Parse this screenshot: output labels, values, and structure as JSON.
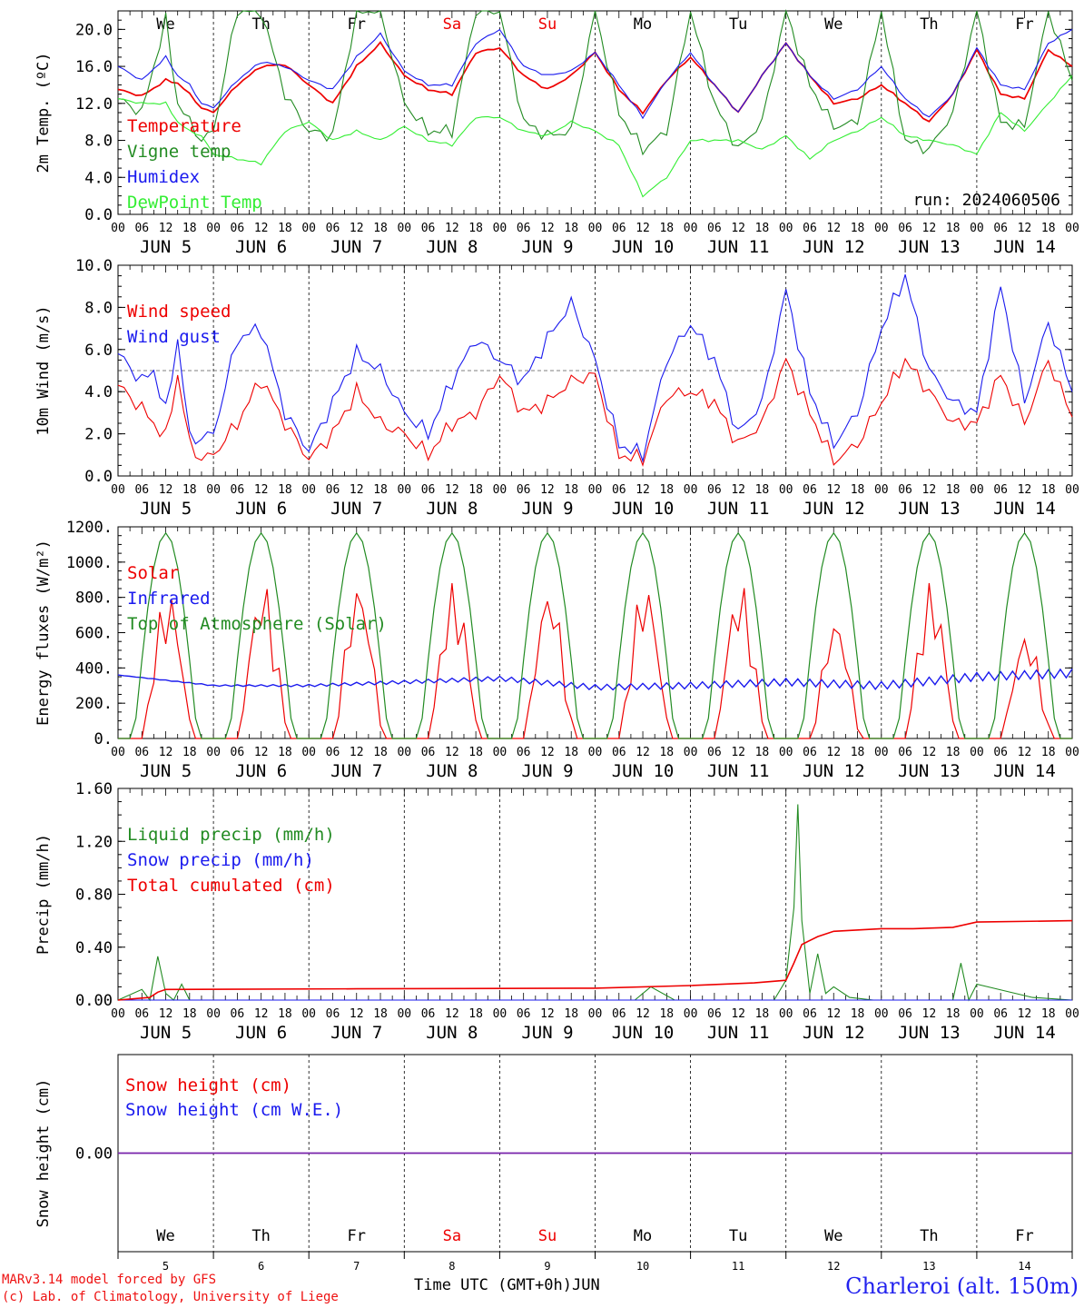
{
  "run_label": "run: 2024060506",
  "footer": {
    "model": "MARv3.14 model forced by GFS",
    "copyright": "(c) Lab. of Climatology, University of Liege",
    "time_label": "Time UTC (GMT+0h)",
    "month_label": "JUN",
    "station": "Charleroi (alt. 150m)"
  },
  "days": {
    "weekday_labels": [
      "We",
      "Th",
      "Fr",
      "Sa",
      "Su",
      "Mo",
      "Tu",
      "We",
      "Th",
      "Fr"
    ],
    "weekend_flags": [
      false,
      false,
      false,
      true,
      true,
      false,
      false,
      false,
      false,
      false
    ],
    "dates": [
      "JUN  5",
      "JUN  6",
      "JUN  7",
      "JUN  8",
      "JUN  9",
      "JUN 10",
      "JUN 11",
      "JUN 12",
      "JUN 13",
      "JUN 14"
    ],
    "day_numbers": [
      "5",
      "6",
      "7",
      "8",
      "9",
      "10",
      "11",
      "12",
      "13",
      "14"
    ],
    "hour_ticks": [
      "00",
      "06",
      "12",
      "18"
    ],
    "final_hour": "00"
  },
  "colors": {
    "red": "#ee0000",
    "green": "#228b22",
    "blue": "#1a1aee",
    "lightgreen": "#33ee33",
    "purple": "#7722aa"
  },
  "chart_data": [
    {
      "type": "line",
      "ylabel": "2m Temp. (ºC)",
      "ylim": [
        0,
        22
      ],
      "yticks": [
        "0.0",
        "4.0",
        "8.0",
        "12.0",
        "16.0",
        "20.0"
      ],
      "ytick_values": [
        0,
        4,
        8,
        12,
        16,
        20
      ],
      "x_unit": "hours since JUN 5 00 UTC",
      "legend_placement": "left",
      "series": [
        {
          "name": "Temperature",
          "color": "red",
          "x": [
            0,
            6,
            12,
            15,
            18,
            21,
            24,
            30,
            36,
            42,
            48,
            54,
            60,
            66,
            72,
            78,
            84,
            90,
            96,
            102,
            108,
            114,
            120,
            126,
            132,
            138,
            144,
            150,
            156,
            162,
            168,
            174,
            180,
            186,
            192,
            198,
            204,
            210,
            216,
            222,
            228,
            234,
            240
          ],
          "values": [
            13.5,
            12.8,
            14.5,
            14.2,
            13.0,
            11.5,
            11.0,
            14.0,
            16.0,
            16.2,
            14.0,
            12.0,
            16.0,
            18.5,
            15.0,
            13.5,
            13.0,
            17.5,
            18.0,
            15.0,
            13.5,
            15.0,
            17.5,
            13.5,
            11.0,
            14.5,
            17.0,
            14.0,
            11.0,
            15.0,
            18.5,
            15.0,
            12.0,
            12.5,
            14.0,
            12.0,
            10.0,
            13.0,
            17.8,
            13.0,
            12.5,
            17.8,
            16.0
          ]
        },
        {
          "name": "Vigne temp",
          "color": "green",
          "x": [
            0,
            6,
            12,
            15,
            18,
            21,
            24,
            30,
            36,
            42,
            48,
            54,
            60,
            66,
            72,
            78,
            84,
            90,
            96,
            102,
            108,
            114,
            120,
            126,
            132,
            138,
            144,
            150,
            156,
            162,
            168,
            174,
            180,
            186,
            192,
            198,
            204,
            210,
            216,
            222,
            228,
            234,
            240
          ],
          "values": [
            12.5,
            11.0,
            21.0,
            12.0,
            10.0,
            8.0,
            9.0,
            22.0,
            22.0,
            13.0,
            9.0,
            8.5,
            22.0,
            22.0,
            12.0,
            9.0,
            9.0,
            22.0,
            22.0,
            10.0,
            8.5,
            9.0,
            22.0,
            11.0,
            7.0,
            9.0,
            22.0,
            12.0,
            7.0,
            10.0,
            22.0,
            14.0,
            9.5,
            10.0,
            22.0,
            8.0,
            7.0,
            11.0,
            22.0,
            10.0,
            9.5,
            22.0,
            14.5
          ]
        },
        {
          "name": "Humidex",
          "color": "blue",
          "x": [
            0,
            6,
            12,
            15,
            18,
            21,
            24,
            30,
            36,
            42,
            48,
            54,
            60,
            66,
            72,
            78,
            84,
            90,
            96,
            102,
            108,
            114,
            120,
            126,
            132,
            138,
            144,
            150,
            156,
            162,
            168,
            174,
            180,
            186,
            192,
            198,
            204,
            210,
            216,
            222,
            228,
            234,
            240
          ],
          "values": [
            16.0,
            14.5,
            17.0,
            15.0,
            14.0,
            12.0,
            11.5,
            14.5,
            16.5,
            16.0,
            14.5,
            13.5,
            17.0,
            19.5,
            15.5,
            14.0,
            14.0,
            18.5,
            20.0,
            16.0,
            15.0,
            15.5,
            17.5,
            14.0,
            10.5,
            14.5,
            17.5,
            14.0,
            11.0,
            15.0,
            18.5,
            15.0,
            12.5,
            13.5,
            16.0,
            12.5,
            10.5,
            13.0,
            18.0,
            14.0,
            13.5,
            18.5,
            20.0
          ]
        },
        {
          "name": "DewPoint Temp",
          "color": "lightgreen",
          "x": [
            0,
            6,
            12,
            15,
            18,
            21,
            24,
            30,
            36,
            42,
            48,
            54,
            60,
            66,
            72,
            78,
            84,
            90,
            96,
            102,
            108,
            114,
            120,
            126,
            132,
            138,
            144,
            150,
            156,
            162,
            168,
            174,
            180,
            186,
            192,
            198,
            204,
            210,
            216,
            222,
            228,
            234,
            240
          ],
          "values": [
            12.5,
            12.0,
            12.0,
            10.0,
            9.0,
            8.5,
            6.5,
            6.0,
            5.5,
            9.0,
            10.0,
            8.0,
            9.0,
            8.0,
            9.5,
            8.0,
            7.5,
            10.5,
            10.5,
            9.0,
            8.5,
            10.0,
            9.0,
            7.5,
            2.0,
            4.0,
            8.0,
            8.0,
            8.0,
            7.0,
            8.5,
            6.0,
            8.0,
            9.0,
            10.5,
            8.5,
            8.0,
            7.5,
            6.5,
            11.0,
            9.0,
            12.0,
            15.0
          ]
        }
      ]
    },
    {
      "type": "line",
      "ylabel": "10m Wind (m/s)",
      "ylim": [
        0,
        10
      ],
      "yticks": [
        "0.0",
        "2.0",
        "4.0",
        "6.0",
        "8.0",
        "10.0"
      ],
      "ytick_values": [
        0,
        2,
        4,
        6,
        8,
        10
      ],
      "reference_line": 5,
      "legend_placement": "left",
      "series": [
        {
          "name": "Wind speed",
          "color": "red",
          "x": [
            0,
            6,
            9,
            12,
            15,
            18,
            21,
            24,
            30,
            36,
            42,
            48,
            54,
            60,
            66,
            72,
            78,
            84,
            90,
            96,
            102,
            108,
            114,
            120,
            126,
            132,
            138,
            144,
            150,
            156,
            162,
            168,
            174,
            180,
            186,
            192,
            198,
            204,
            210,
            216,
            222,
            228,
            234,
            240
          ],
          "values": [
            4.3,
            3.2,
            2.5,
            1.8,
            4.8,
            1.5,
            0.8,
            1.0,
            2.5,
            4.6,
            2.5,
            0.8,
            2.0,
            4.0,
            2.5,
            2.0,
            1.0,
            2.5,
            3.0,
            4.8,
            3.0,
            3.5,
            4.5,
            4.8,
            1.0,
            0.8,
            3.8,
            4.0,
            3.5,
            1.5,
            2.5,
            5.5,
            3.0,
            0.7,
            1.5,
            3.5,
            5.5,
            4.0,
            2.5,
            2.5,
            4.8,
            2.5,
            5.5,
            2.8
          ]
        },
        {
          "name": "Wind gust",
          "color": "blue",
          "x": [
            0,
            6,
            9,
            12,
            15,
            18,
            21,
            24,
            30,
            36,
            42,
            48,
            54,
            60,
            66,
            72,
            78,
            84,
            90,
            96,
            102,
            108,
            114,
            120,
            126,
            132,
            138,
            144,
            150,
            156,
            162,
            168,
            174,
            180,
            186,
            192,
            198,
            204,
            210,
            216,
            222,
            228,
            234,
            240
          ],
          "values": [
            5.8,
            4.5,
            5.0,
            3.0,
            6.5,
            1.8,
            1.8,
            2.0,
            6.5,
            7.0,
            3.0,
            1.2,
            3.5,
            5.8,
            5.0,
            3.0,
            2.0,
            4.5,
            6.5,
            5.5,
            4.5,
            6.5,
            8.2,
            5.5,
            1.5,
            1.0,
            5.5,
            7.2,
            5.5,
            2.0,
            3.5,
            8.8,
            4.0,
            1.5,
            3.0,
            7.0,
            9.5,
            5.0,
            3.5,
            3.0,
            9.0,
            3.5,
            7.3,
            4.0
          ]
        }
      ]
    },
    {
      "type": "line",
      "ylabel": "Energy fluxes (W/m²)",
      "ylim": [
        0,
        1200
      ],
      "yticks": [
        "0.",
        "200.",
        "400.",
        "600.",
        "800.",
        "1000.",
        "1200."
      ],
      "ytick_values": [
        0,
        200,
        400,
        600,
        800,
        1000,
        1200
      ],
      "legend_placement": "left",
      "series": [
        {
          "name": "Solar",
          "color": "red",
          "peaks": [
            850,
            890,
            890,
            890,
            870,
            900,
            890,
            690,
            890,
            610
          ]
        },
        {
          "name": "Infrared",
          "color": "blue",
          "x": [
            0,
            24,
            48,
            72,
            96,
            120,
            144,
            168,
            192,
            216,
            240
          ],
          "values": [
            360,
            300,
            300,
            320,
            340,
            290,
            300,
            320,
            300,
            350,
            370
          ]
        },
        {
          "name": "Top of Atmosphere (Solar)",
          "color": "green",
          "peaks": [
            1165,
            1165,
            1165,
            1165,
            1165,
            1165,
            1165,
            1165,
            1165,
            1165
          ]
        }
      ]
    },
    {
      "type": "line",
      "ylabel": "Precip (mm/h)",
      "ylim": [
        0,
        1.6
      ],
      "yticks": [
        "0.00",
        "0.40",
        "0.80",
        "1.20",
        "1.60"
      ],
      "ytick_values": [
        0,
        0.4,
        0.8,
        1.2,
        1.6
      ],
      "legend_placement": "left",
      "series": [
        {
          "name": "Liquid precip (mm/h)",
          "color": "green",
          "x": [
            0,
            6,
            8,
            10,
            12,
            14,
            16,
            18,
            20,
            24,
            120,
            130,
            134,
            140,
            150,
            160,
            165,
            168,
            170,
            171,
            172,
            174,
            176,
            178,
            180,
            184,
            190,
            200,
            205,
            210,
            212,
            214,
            216,
            230,
            240
          ],
          "values": [
            0,
            0.08,
            0,
            0.33,
            0.05,
            0,
            0.12,
            0,
            0,
            0,
            0,
            0,
            0.1,
            0,
            0,
            0,
            0,
            0.15,
            0.7,
            1.48,
            0.6,
            0.05,
            0.35,
            0.05,
            0.1,
            0.02,
            0,
            0,
            0,
            0,
            0.28,
            0,
            0.12,
            0.02,
            0
          ]
        },
        {
          "name": "Snow precip (mm/h)",
          "color": "blue",
          "x": [
            0,
            240
          ],
          "values": [
            0,
            0
          ]
        },
        {
          "name": "Total cumulated (cm)",
          "color": "red",
          "x": [
            0,
            8,
            10,
            12,
            60,
            120,
            144,
            160,
            168,
            170,
            172,
            176,
            180,
            192,
            200,
            210,
            216,
            240
          ],
          "values": [
            0,
            0.02,
            0.06,
            0.08,
            0.085,
            0.09,
            0.11,
            0.13,
            0.15,
            0.28,
            0.42,
            0.48,
            0.52,
            0.54,
            0.54,
            0.55,
            0.59,
            0.6
          ]
        }
      ]
    },
    {
      "type": "line",
      "ylabel": "Snow height (cm)",
      "ylim": [
        -1,
        1
      ],
      "yticks": [
        "0.00"
      ],
      "ytick_values": [
        0
      ],
      "legend_placement": "left",
      "series": [
        {
          "name": "Snow height (cm)",
          "color": "red",
          "x": [
            0,
            240
          ],
          "values": [
            0,
            0
          ]
        },
        {
          "name": "Snow height (cm W.E.)",
          "color": "blue",
          "x": [
            0,
            240
          ],
          "values": [
            0,
            0
          ]
        }
      ]
    }
  ]
}
